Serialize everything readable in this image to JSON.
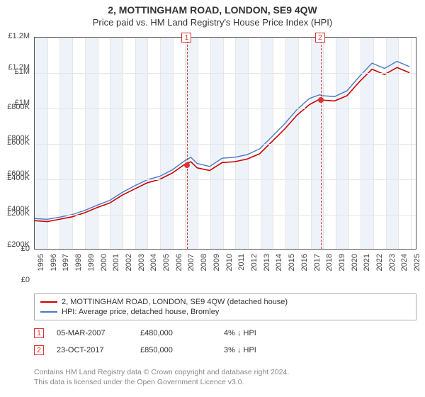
{
  "title": "2, MOTTINGHAM ROAD, LONDON, SE9 4QW",
  "subtitle": "Price paid vs. HM Land Registry's House Price Index (HPI)",
  "chart": {
    "type": "line",
    "background_color": "#ffffff",
    "plot_border_color": "#555555",
    "grid_color": "#e5e5e5",
    "band_color": "#eef3f9",
    "xlim": [
      1995,
      2025.5
    ],
    "ylim": [
      0,
      1200000
    ],
    "ytick_step": 200000,
    "yticks": [
      "£0",
      "£200K",
      "£400K",
      "£600K",
      "£800K",
      "£1M",
      "£1.2M"
    ],
    "xticks": [
      1995,
      1996,
      1997,
      1998,
      1999,
      2000,
      2001,
      2002,
      2003,
      2004,
      2005,
      2006,
      2007,
      2008,
      2009,
      2010,
      2011,
      2012,
      2013,
      2014,
      2015,
      2016,
      2017,
      2018,
      2019,
      2020,
      2021,
      2022,
      2023,
      2024,
      2025
    ],
    "series": [
      {
        "name": "property",
        "label": "2, MOTTINGHAM ROAD, LONDON, SE9 4QW (detached house)",
        "color": "#cc0000",
        "line_width": 1.6,
        "data": [
          [
            1995,
            160000
          ],
          [
            1996,
            155000
          ],
          [
            1997,
            168000
          ],
          [
            1998,
            182000
          ],
          [
            1999,
            205000
          ],
          [
            2000,
            235000
          ],
          [
            2001,
            260000
          ],
          [
            2002,
            305000
          ],
          [
            2003,
            340000
          ],
          [
            2004,
            375000
          ],
          [
            2005,
            395000
          ],
          [
            2006,
            430000
          ],
          [
            2007,
            480000
          ],
          [
            2007.5,
            495000
          ],
          [
            2008,
            460000
          ],
          [
            2009,
            445000
          ],
          [
            2010,
            490000
          ],
          [
            2011,
            495000
          ],
          [
            2012,
            510000
          ],
          [
            2013,
            540000
          ],
          [
            2014,
            610000
          ],
          [
            2015,
            680000
          ],
          [
            2016,
            760000
          ],
          [
            2017,
            820000
          ],
          [
            2017.8,
            850000
          ],
          [
            2018,
            845000
          ],
          [
            2019,
            840000
          ],
          [
            2020,
            870000
          ],
          [
            2021,
            950000
          ],
          [
            2022,
            1020000
          ],
          [
            2023,
            990000
          ],
          [
            2024,
            1030000
          ],
          [
            2025,
            1000000
          ]
        ]
      },
      {
        "name": "hpi",
        "label": "HPI: Average price, detached house, Bromley",
        "color": "#4a78c4",
        "line_width": 1.4,
        "data": [
          [
            1995,
            172000
          ],
          [
            1996,
            168000
          ],
          [
            1997,
            180000
          ],
          [
            1998,
            195000
          ],
          [
            1999,
            218000
          ],
          [
            2000,
            248000
          ],
          [
            2001,
            275000
          ],
          [
            2002,
            320000
          ],
          [
            2003,
            358000
          ],
          [
            2004,
            392000
          ],
          [
            2005,
            412000
          ],
          [
            2006,
            448000
          ],
          [
            2007,
            500000
          ],
          [
            2007.5,
            520000
          ],
          [
            2008,
            485000
          ],
          [
            2009,
            468000
          ],
          [
            2010,
            515000
          ],
          [
            2011,
            520000
          ],
          [
            2012,
            535000
          ],
          [
            2013,
            568000
          ],
          [
            2014,
            638000
          ],
          [
            2015,
            710000
          ],
          [
            2016,
            792000
          ],
          [
            2017,
            855000
          ],
          [
            2017.8,
            875000
          ],
          [
            2018,
            870000
          ],
          [
            2019,
            865000
          ],
          [
            2020,
            898000
          ],
          [
            2021,
            980000
          ],
          [
            2022,
            1055000
          ],
          [
            2023,
            1025000
          ],
          [
            2024,
            1065000
          ],
          [
            2025,
            1035000
          ]
        ]
      }
    ],
    "sale_markers": [
      {
        "id": "1",
        "x": 2007.17,
        "y": 480000,
        "box_top_offset": -26
      },
      {
        "id": "2",
        "x": 2017.81,
        "y": 850000,
        "box_top_offset": -26
      }
    ],
    "vline_color": "#d33333"
  },
  "legend": {
    "items": [
      {
        "color": "#cc0000",
        "text": "2, MOTTINGHAM ROAD, LONDON, SE9 4QW (detached house)"
      },
      {
        "color": "#4a78c4",
        "text": "HPI: Average price, detached house, Bromley"
      }
    ]
  },
  "sales": [
    {
      "id": "1",
      "date": "05-MAR-2007",
      "price": "£480,000",
      "diff": "4% ↓ HPI"
    },
    {
      "id": "2",
      "date": "23-OCT-2017",
      "price": "£850,000",
      "diff": "3% ↓ HPI"
    }
  ],
  "footer_line1": "Contains HM Land Registry data © Crown copyright and database right 2024.",
  "footer_line2": "This data is licensed under the Open Government Licence v3.0."
}
